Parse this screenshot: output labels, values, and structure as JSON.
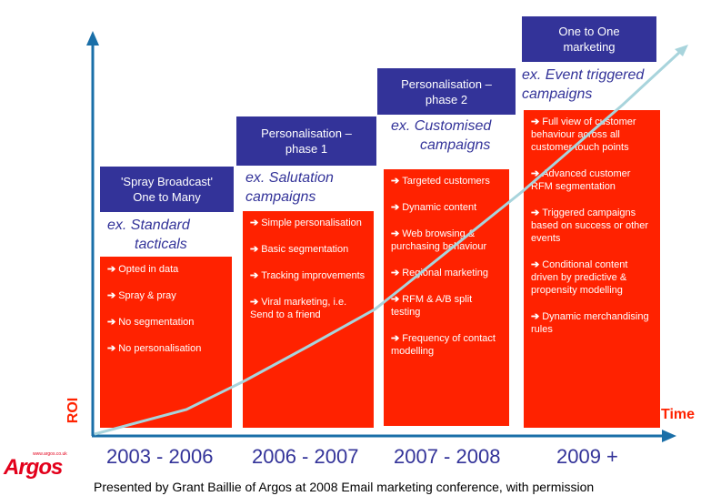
{
  "axes": {
    "y_label": "ROI",
    "x_label": "Time"
  },
  "colors": {
    "header_bg": "#333399",
    "box_bg": "#ff2200",
    "axis": "#1a6fa8",
    "trend": "#a8d4dc",
    "label_text": "#333399",
    "axis_label": "#ff2200"
  },
  "stages": [
    {
      "header": [
        "'Spray Broadcast'",
        "One to Many"
      ],
      "example": [
        "ex. Standard",
        "tacticals"
      ],
      "items": [
        "Opted in data",
        "Spray & pray",
        "No segmentation",
        "No personalisation"
      ],
      "period": "2003 - 2006"
    },
    {
      "header": [
        "Personalisation –",
        "phase 1"
      ],
      "example": [
        "ex. Salutation",
        "campaigns"
      ],
      "items": [
        "Simple personalisation",
        "Basic segmentation",
        "Tracking improvements",
        "Viral marketing, i.e. Send to a friend"
      ],
      "period": "2006 - 2007"
    },
    {
      "header": [
        "Personalisation –",
        "phase 2"
      ],
      "example": [
        "ex. Customised",
        "campaigns"
      ],
      "items": [
        "Targeted customers",
        "Dynamic content",
        "Web browsing & purchasing behaviour",
        "Regional marketing",
        "RFM & A/B split testing",
        "Frequency of contact modelling"
      ],
      "period": "2007 - 2008"
    },
    {
      "header": [
        "One to One",
        "marketing"
      ],
      "example": [
        "ex. Event triggered",
        "campaigns"
      ],
      "items": [
        "Full view of customer behaviour across all customer touch points",
        "Advanced customer RFM segmentation",
        "Triggered campaigns based on success or other events",
        "Conditional content driven by predictive & propensity modelling",
        "Dynamic merchandising rules"
      ],
      "period": "2009 +"
    }
  ],
  "arrow_glyph": "➔",
  "logo": {
    "url_text": "www.argos.co.uk",
    "name": "Argos"
  },
  "footer": "Presented by Grant Baillie of Argos at 2008 Email marketing conference, with permission"
}
